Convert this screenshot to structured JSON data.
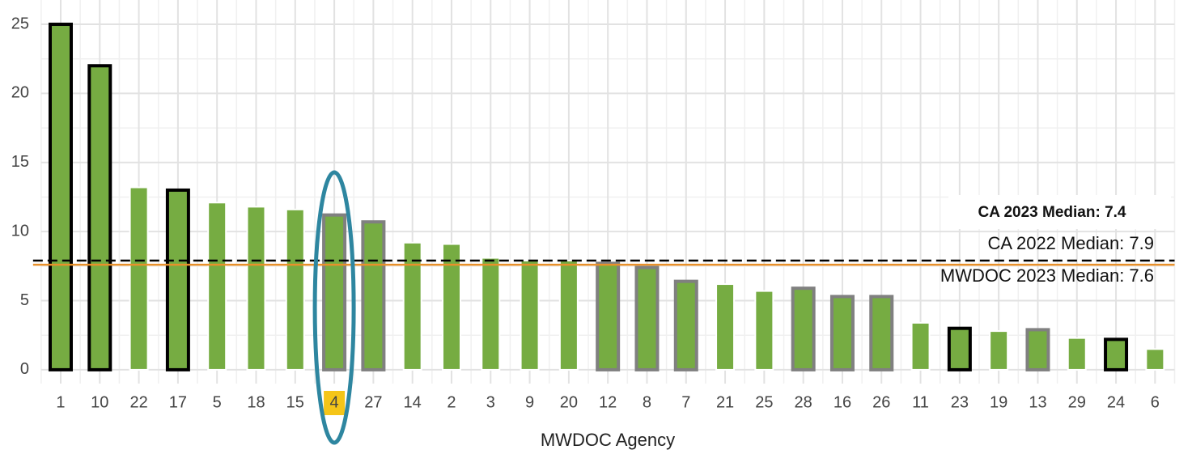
{
  "chart_data": {
    "type": "bar",
    "x_label": "MWDOC Agency",
    "categories": [
      "1",
      "10",
      "22",
      "17",
      "5",
      "18",
      "15",
      "4",
      "27",
      "14",
      "2",
      "3",
      "9",
      "20",
      "12",
      "8",
      "7",
      "21",
      "25",
      "28",
      "16",
      "26",
      "11",
      "23",
      "19",
      "13",
      "29",
      "24",
      "6"
    ],
    "values": [
      25,
      22,
      13.2,
      13,
      12.1,
      11.8,
      11.6,
      11.2,
      10.7,
      9.2,
      9.1,
      8.1,
      7.9,
      7.9,
      7.7,
      7.4,
      6.4,
      6.2,
      5.7,
      5.9,
      5.3,
      5.3,
      3.4,
      3.0,
      2.8,
      2.9,
      2.3,
      2.2,
      1.5
    ],
    "color": "#76ac42",
    "edge_colors": [
      "#000000",
      "#000000",
      null,
      "#000000",
      null,
      null,
      null,
      "#808080",
      "#808080",
      null,
      null,
      null,
      null,
      null,
      "#808080",
      "#808080",
      "#808080",
      null,
      null,
      "#808080",
      "#808080",
      "#808080",
      null,
      "#000000",
      null,
      "#808080",
      null,
      "#000000",
      null
    ],
    "highlight_index": 7,
    "ylim": [
      -1,
      26.5
    ],
    "yticks": [
      0,
      5,
      10,
      15,
      20,
      25
    ],
    "grid": true,
    "annotations": [
      {
        "text": "CA 2023 Median: 7.4"
      },
      {
        "text": "CA 2022 Median: 7.9",
        "value": 7.9,
        "color": "#000000",
        "style": "dashed"
      },
      {
        "text": "MWDOC 2023 Median: 7.6",
        "value": 7.6,
        "color": "#e8902a",
        "style": "solid"
      }
    ]
  }
}
